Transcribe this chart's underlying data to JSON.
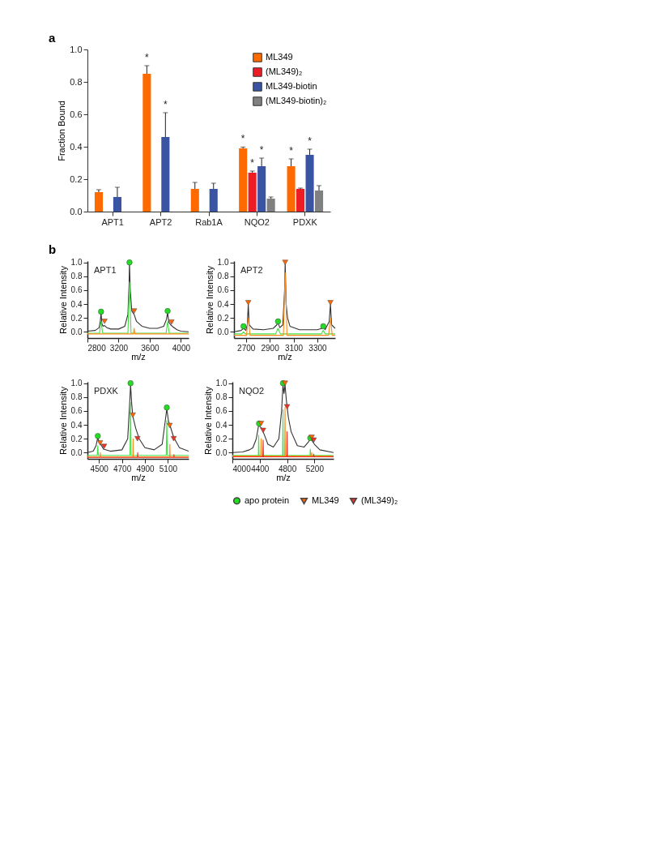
{
  "chart_data": [
    {
      "type": "bar",
      "annotations": [
        {
          "text": "a"
        }
      ],
      "ylabel": "Fraction Bound",
      "categories": [
        "APT1",
        "APT2",
        "Rab1A",
        "NQO2",
        "PDXK"
      ],
      "ylim": [
        0,
        1.0
      ],
      "yticks": [
        {
          "value": 0,
          "label": "0.0"
        },
        {
          "value": 0.2,
          "label": "0.2"
        },
        {
          "value": 0.4,
          "label": "0.4"
        },
        {
          "value": 0.6,
          "label": "0.6"
        },
        {
          "value": 0.8,
          "label": "0.8"
        },
        {
          "value": 1.0,
          "label": "1.0"
        }
      ],
      "legend": "top right",
      "series": [
        {
          "name": "ML349",
          "color": "#ff6a00",
          "values": [
            0.12,
            0.85,
            0.14,
            0.39,
            0.28
          ],
          "errors": [
            0.015,
            0.05,
            0.04,
            0.008,
            0.045
          ],
          "value_labels": [
            null,
            "*",
            null,
            "*",
            "*"
          ]
        },
        {
          "name": "(ML349)₂",
          "color": "#ee1c25",
          "values": [
            null,
            null,
            null,
            0.24,
            0.14
          ],
          "errors": [
            null,
            null,
            null,
            0.01,
            0.005
          ],
          "value_labels": [
            null,
            null,
            null,
            "*",
            null
          ]
        },
        {
          "name": "ML349-biotin",
          "color": "#3a54a4",
          "values": [
            0.09,
            0.46,
            0.14,
            0.28,
            0.35
          ],
          "errors": [
            0.06,
            0.15,
            0.035,
            0.05,
            0.035
          ],
          "value_labels": [
            null,
            "*",
            null,
            "*",
            "*"
          ]
        },
        {
          "name": "(ML349-biotin)₂",
          "color": "#808080",
          "values": [
            null,
            null,
            null,
            0.08,
            0.13
          ],
          "errors": [
            null,
            null,
            null,
            0.01,
            0.03
          ]
        }
      ]
    },
    {
      "type": "line",
      "title": "APT1",
      "annotations": [
        {
          "text": "b"
        }
      ],
      "xlabel": "m/z",
      "ylabel": "Relative Intensity",
      "xlim": [
        2800,
        4100
      ],
      "xticks": [
        2800,
        3200,
        3600,
        4000
      ],
      "ylim": [
        -0.09,
        1.02
      ],
      "yticks": [
        {
          "value": 0,
          "label": "0.0"
        },
        {
          "value": 0.2,
          "label": "0.2"
        },
        {
          "value": 0.4,
          "label": "0.4"
        },
        {
          "value": 0.6,
          "label": "0.6"
        },
        {
          "value": 0.8,
          "label": "0.8"
        },
        {
          "value": 1.0,
          "label": "1.0"
        }
      ],
      "series": [
        {
          "color": "#333333",
          "type": "line",
          "x": [
            2800,
            2900,
            2950,
            2965,
            2975,
            2985,
            3000,
            3020,
            3050,
            3100,
            3200,
            3280,
            3320,
            3335,
            3340,
            3350,
            3370,
            3400,
            3430,
            3500,
            3600,
            3700,
            3780,
            3815,
            3830,
            3845,
            3870,
            3900,
            3950,
            4000,
            4100
          ],
          "values": [
            0.01,
            0.02,
            0.06,
            0.15,
            0.28,
            0.12,
            0.08,
            0.09,
            0.06,
            0.04,
            0.04,
            0.08,
            0.25,
            0.7,
            1.0,
            0.6,
            0.3,
            0.25,
            0.15,
            0.08,
            0.05,
            0.05,
            0.08,
            0.18,
            0.28,
            0.14,
            0.1,
            0.07,
            0.03,
            0.01,
            0.0
          ]
        },
        {
          "color": "#44e044",
          "type": "line",
          "x": [
            2800,
            2955,
            2975,
            2995,
            3320,
            3340,
            3360,
            3810,
            3830,
            3850,
            4100
          ],
          "values": [
            -0.02,
            -0.02,
            0.15,
            -0.02,
            -0.02,
            0.72,
            -0.02,
            -0.02,
            0.15,
            -0.02,
            -0.02
          ]
        },
        {
          "color": "#ff8c1a",
          "type": "line",
          "x": [
            2800,
            3390,
            3400,
            3410,
            4100
          ],
          "values": [
            -0.03,
            -0.03,
            0.05,
            -0.03,
            -0.03
          ]
        },
        {
          "color": "#22dd22",
          "type": "scatter",
          "marker": "circle",
          "x": [
            2975,
            3340,
            3830
          ],
          "values": [
            0.29,
            1.0,
            0.3
          ]
        },
        {
          "color": "#ff6600",
          "type": "scatter",
          "marker": "triangle",
          "x": [
            3020,
            3400,
            3880
          ],
          "values": [
            0.15,
            0.3,
            0.14
          ]
        }
      ]
    },
    {
      "type": "line",
      "title": "APT2",
      "xlabel": "m/z",
      "ylabel": "Relative Intensity",
      "xlim": [
        2600,
        3450
      ],
      "xticks": [
        2700,
        2900,
        3100,
        3300
      ],
      "ylim": [
        -0.09,
        1.02
      ],
      "yticks": [
        {
          "value": 0,
          "label": "0.0"
        },
        {
          "value": 0.2,
          "label": "0.2"
        },
        {
          "value": 0.4,
          "label": "0.4"
        },
        {
          "value": 0.6,
          "label": "0.6"
        },
        {
          "value": 0.8,
          "label": "0.8"
        },
        {
          "value": 1.0,
          "label": "1.0"
        }
      ],
      "series": [
        {
          "color": "#333333",
          "type": "line",
          "x": [
            2600,
            2660,
            2680,
            2700,
            2712,
            2720,
            2728,
            2760,
            2850,
            2930,
            2960,
            2970,
            2985,
            3010,
            3025,
            3030,
            3038,
            3050,
            3070,
            3150,
            3300,
            3340,
            3350,
            3365,
            3400,
            3410,
            3420,
            3450
          ],
          "values": [
            0.0,
            0.02,
            0.05,
            0.02,
            0.1,
            0.4,
            0.1,
            0.04,
            0.03,
            0.05,
            0.1,
            0.13,
            0.06,
            0.1,
            0.6,
            1.0,
            0.4,
            0.2,
            0.08,
            0.03,
            0.03,
            0.05,
            0.07,
            0.03,
            0.15,
            0.4,
            0.1,
            0.05
          ]
        },
        {
          "color": "#44e044",
          "type": "line",
          "x": [
            2600,
            2665,
            2680,
            2695,
            2950,
            2970,
            2990,
            3335,
            3350,
            3365,
            3450
          ],
          "values": [
            -0.03,
            -0.03,
            0.0,
            -0.03,
            -0.03,
            0.05,
            -0.03,
            -0.03,
            0.02,
            -0.03,
            -0.03
          ]
        },
        {
          "color": "#ff8c1a",
          "type": "line",
          "x": [
            2600,
            2705,
            2720,
            2735,
            3015,
            3030,
            3045,
            3395,
            3410,
            3425,
            3450
          ],
          "values": [
            -0.05,
            -0.05,
            0.2,
            -0.05,
            -0.05,
            0.85,
            -0.05,
            -0.05,
            0.2,
            -0.05,
            -0.05
          ]
        },
        {
          "color": "#22dd22",
          "type": "scatter",
          "marker": "circle",
          "x": [
            2680,
            2970,
            3350
          ],
          "values": [
            0.08,
            0.15,
            0.08
          ]
        },
        {
          "color": "#ff6600",
          "type": "scatter",
          "marker": "triangle",
          "x": [
            2720,
            3030,
            3410
          ],
          "values": [
            0.42,
            1.0,
            0.42
          ]
        }
      ]
    },
    {
      "type": "line",
      "title": "PDXK",
      "xlabel": "m/z",
      "ylabel": "Relative Intensity",
      "xlim": [
        4400,
        5280
      ],
      "xticks": [
        4500,
        4700,
        4900,
        5100
      ],
      "ylim": [
        -0.09,
        1.02
      ],
      "yticks": [
        {
          "value": 0,
          "label": "0.0"
        },
        {
          "value": 0.2,
          "label": "0.2"
        },
        {
          "value": 0.4,
          "label": "0.4"
        },
        {
          "value": 0.6,
          "label": "0.6"
        },
        {
          "value": 0.8,
          "label": "0.8"
        },
        {
          "value": 1.0,
          "label": "1.0"
        }
      ],
      "series": [
        {
          "color": "#333333",
          "type": "line",
          "x": [
            4400,
            4450,
            4475,
            4490,
            4500,
            4515,
            4540,
            4600,
            4700,
            4750,
            4770,
            4775,
            4785,
            4795,
            4820,
            4850,
            4900,
            4980,
            5050,
            5080,
            5090,
            5105,
            5120,
            5150,
            5200,
            5280
          ],
          "values": [
            0.0,
            0.02,
            0.1,
            0.22,
            0.16,
            0.12,
            0.05,
            0.02,
            0.04,
            0.2,
            0.8,
            0.98,
            0.7,
            0.52,
            0.35,
            0.2,
            0.07,
            0.04,
            0.12,
            0.5,
            0.63,
            0.45,
            0.38,
            0.22,
            0.07,
            0.02
          ]
        },
        {
          "color": "#44e044",
          "type": "line",
          "x": [
            4400,
            4485,
            4490,
            4495,
            4770,
            4775,
            4780,
            5085,
            5090,
            5095,
            5280
          ],
          "values": [
            -0.04,
            -0.04,
            0.1,
            -0.04,
            -0.04,
            0.72,
            -0.04,
            -0.04,
            0.46,
            -0.04,
            -0.04
          ]
        },
        {
          "color": "#ff8c1a",
          "type": "line",
          "x": [
            4400,
            4510,
            4512,
            4514,
            4795,
            4797,
            4799,
            5115,
            5117,
            5119,
            5280
          ],
          "values": [
            -0.06,
            -0.06,
            0.0,
            -0.06,
            -0.06,
            0.2,
            -0.06,
            -0.06,
            0.12,
            -0.06,
            -0.06
          ]
        },
        {
          "color": "#e8332a",
          "type": "line",
          "x": [
            4400,
            4835,
            4837,
            4839,
            5150,
            5152,
            5154,
            5280
          ],
          "values": [
            -0.07,
            -0.07,
            0.0,
            -0.07,
            -0.07,
            -0.03,
            -0.07,
            -0.07
          ]
        },
        {
          "color": "#22dd22",
          "type": "scatter",
          "marker": "circle",
          "x": [
            4490,
            4775,
            5090
          ],
          "values": [
            0.24,
            1.0,
            0.65
          ]
        },
        {
          "color": "#ff6600",
          "type": "scatter",
          "marker": "triangle",
          "x": [
            4510,
            4795,
            5115
          ],
          "values": [
            0.14,
            0.54,
            0.39
          ]
        },
        {
          "color": "#ee3322",
          "type": "scatter",
          "marker": "triangle",
          "x": [
            4545,
            4835,
            5150
          ],
          "values": [
            0.09,
            0.2,
            0.2
          ]
        }
      ]
    },
    {
      "type": "line",
      "title": "NQO2",
      "xlabel": "m/z",
      "ylabel": "Relative Intensity",
      "xlim": [
        4000,
        5480
      ],
      "xticks": [
        4000,
        4400,
        4800,
        5200
      ],
      "ylim": [
        -0.09,
        1.02
      ],
      "legend": "bottom",
      "yticks": [
        {
          "value": 0,
          "label": "0.0"
        },
        {
          "value": 0.2,
          "label": "0.2"
        },
        {
          "value": 0.4,
          "label": "0.4"
        },
        {
          "value": 0.6,
          "label": "0.6"
        },
        {
          "value": 0.8,
          "label": "0.8"
        },
        {
          "value": 1.0,
          "label": "1.0"
        }
      ],
      "series": [
        {
          "color": "#333333",
          "type": "line",
          "x": [
            4000,
            4150,
            4250,
            4300,
            4350,
            4385,
            4400,
            4430,
            4470,
            4520,
            4600,
            4680,
            4720,
            4740,
            4755,
            4770,
            4790,
            4820,
            4860,
            4950,
            5050,
            5110,
            5140,
            5160,
            5200,
            5280,
            5480
          ],
          "values": [
            0.0,
            0.01,
            0.04,
            0.07,
            0.2,
            0.4,
            0.38,
            0.35,
            0.25,
            0.12,
            0.08,
            0.2,
            0.6,
            0.98,
            0.85,
            0.98,
            0.75,
            0.5,
            0.3,
            0.1,
            0.08,
            0.15,
            0.2,
            0.18,
            0.12,
            0.04,
            0.0
          ]
        },
        {
          "color": "#44e044",
          "type": "line",
          "x": [
            4000,
            4380,
            4385,
            4390,
            4735,
            4740,
            4745,
            5135,
            5140,
            5145,
            5480
          ],
          "values": [
            -0.04,
            -0.04,
            0.25,
            -0.04,
            -0.04,
            0.62,
            -0.04,
            -0.04,
            0.05,
            -0.04,
            -0.04
          ]
        },
        {
          "color": "#ff8c1a",
          "type": "line",
          "x": [
            4000,
            4415,
            4420,
            4425,
            4765,
            4770,
            4775,
            5155,
            5160,
            5165,
            5480
          ],
          "values": [
            -0.05,
            -0.05,
            0.2,
            -0.05,
            -0.05,
            0.65,
            -0.05,
            -0.05,
            0.0,
            -0.05,
            -0.05
          ]
        },
        {
          "color": "#e8332a",
          "type": "line",
          "x": [
            4000,
            4445,
            4450,
            4455,
            4795,
            4800,
            4805,
            5185,
            5190,
            5195,
            5480
          ],
          "values": [
            -0.06,
            -0.06,
            0.18,
            -0.06,
            -0.06,
            0.3,
            -0.06,
            -0.06,
            -0.02,
            -0.06,
            -0.06
          ]
        },
        {
          "name": "apo protein",
          "color": "#22dd22",
          "type": "scatter",
          "marker": "circle",
          "x": [
            4390,
            4740,
            5140
          ],
          "values": [
            0.42,
            1.0,
            0.21
          ]
        },
        {
          "name": "ML349",
          "color": "#ff6600",
          "type": "scatter",
          "marker": "triangle",
          "x": [
            4420,
            4770,
            5160
          ],
          "values": [
            0.42,
            1.0,
            0.22
          ]
        },
        {
          "name": "(ML349)₂",
          "color": "#ee3322",
          "type": "scatter",
          "marker": "triangle",
          "x": [
            4450,
            4800,
            5190
          ],
          "values": [
            0.32,
            0.66,
            0.18
          ]
        }
      ]
    }
  ]
}
